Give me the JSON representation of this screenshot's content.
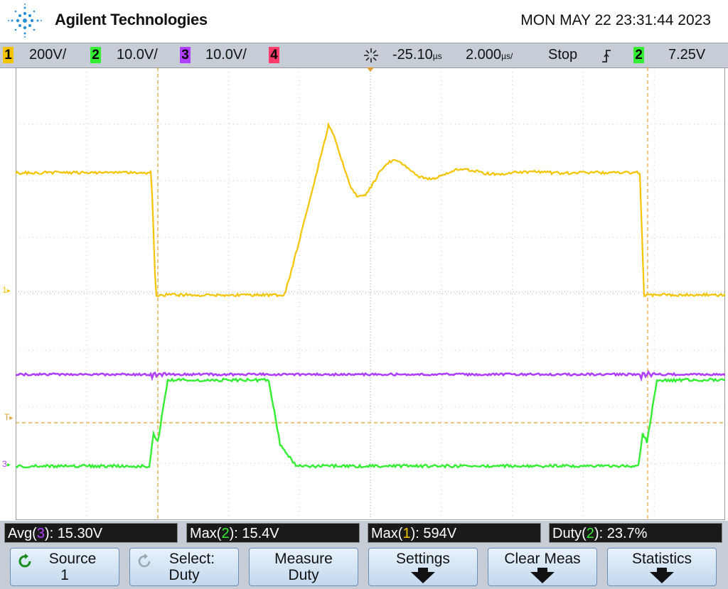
{
  "header": {
    "brand": "Agilent Technologies",
    "datetime": "MON MAY 22 23:31:44 2023"
  },
  "channels": [
    {
      "num": "1",
      "scale": "200V/",
      "color": "#f5c400"
    },
    {
      "num": "2",
      "scale": "10.0V/",
      "color": "#33ee33"
    },
    {
      "num": "3",
      "scale": "10.0V/",
      "color": "#b040ff"
    },
    {
      "num": "4",
      "scale": "",
      "color": "#ff3b6b"
    }
  ],
  "timebase": {
    "delay": "-25.10",
    "delay_unit": "µs",
    "scale": "2.000",
    "scale_unit": "µs/",
    "run_state": "Stop",
    "trigger_channel": "2",
    "trigger_level": "7.25V",
    "trigger_icon": "rising-edge-icon",
    "acquire_icon": "starburst-icon"
  },
  "markers": {
    "ch1": "1",
    "trigger": "T",
    "ch3": "3"
  },
  "measurements": [
    {
      "name": "Avg",
      "channel": "3",
      "channel_color": "#b040ff",
      "value": "15.30V"
    },
    {
      "name": "Max",
      "channel": "2",
      "channel_color": "#33ee33",
      "value": "15.4V"
    },
    {
      "name": "Max",
      "channel": "1",
      "channel_color": "#f5c400",
      "value": "594V"
    },
    {
      "name": "Duty",
      "channel": "2",
      "channel_color": "#33ee33",
      "value": "23.7%"
    }
  ],
  "softkeys": {
    "source": {
      "label": "Source",
      "value": "1"
    },
    "select": {
      "label": "Select:",
      "value": "Duty"
    },
    "measure": {
      "label": "Measure",
      "value": "Duty"
    },
    "settings": {
      "label": "Settings"
    },
    "clear": {
      "label": "Clear Meas"
    },
    "statistics": {
      "label": "Statistics"
    }
  },
  "colors": {
    "ch1": "#f5c400",
    "ch2": "#33ee33",
    "ch3": "#b040ff",
    "cursor": "#e0a030",
    "grid": "#bdbdbd"
  }
}
